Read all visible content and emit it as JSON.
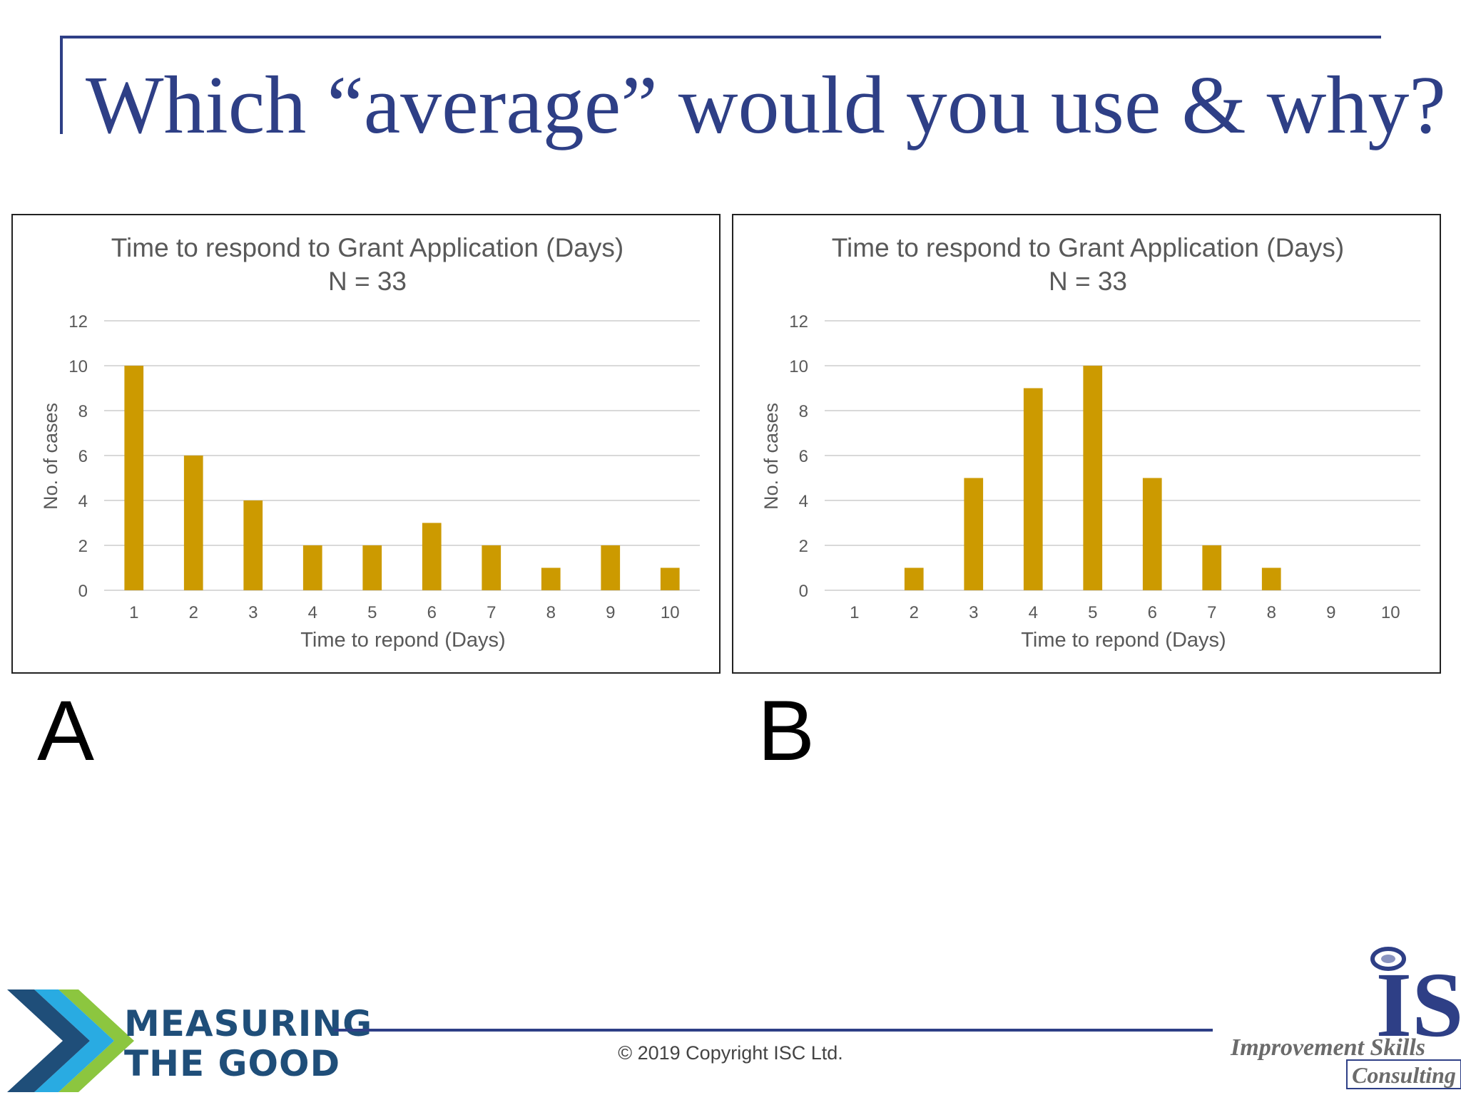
{
  "slide": {
    "title": "Which “average” would you use & why?",
    "copyright": "© 2019 Copyright ISC Ltd."
  },
  "logos": {
    "left_line1": "MEASURING",
    "left_line2": "THE GOOD",
    "right_mark": "IS",
    "right_line1": "Improvement Skills",
    "right_line2": "Consulting"
  },
  "colors": {
    "bar": "#cc9a00",
    "title": "#2e3f86",
    "gridline": "#d9d9d9",
    "axis_text": "#595959"
  },
  "chart_data": [
    {
      "panel_label": "A",
      "type": "bar",
      "title": "Time to respond to Grant Application (Days)",
      "subtitle": "N = 33",
      "xlabel": "Time to repond (Days)",
      "ylabel": "No. of cases",
      "categories": [
        "1",
        "2",
        "3",
        "4",
        "5",
        "6",
        "7",
        "8",
        "9",
        "10"
      ],
      "values": [
        10,
        6,
        4,
        2,
        2,
        3,
        2,
        1,
        2,
        1
      ],
      "ylim": [
        0,
        12
      ],
      "yticks": [
        0,
        2,
        4,
        6,
        8,
        10,
        12
      ],
      "grid": true,
      "legend": "none"
    },
    {
      "panel_label": "B",
      "type": "bar",
      "title": "Time to respond to Grant Application (Days)",
      "subtitle": "N = 33",
      "xlabel": "Time to repond (Days)",
      "ylabel": "No. of cases",
      "categories": [
        "1",
        "2",
        "3",
        "4",
        "5",
        "6",
        "7",
        "8",
        "9",
        "10"
      ],
      "values": [
        0,
        1,
        5,
        9,
        10,
        5,
        2,
        1,
        0,
        0
      ],
      "ylim": [
        0,
        12
      ],
      "yticks": [
        0,
        2,
        4,
        6,
        8,
        10,
        12
      ],
      "grid": true,
      "legend": "none"
    }
  ]
}
